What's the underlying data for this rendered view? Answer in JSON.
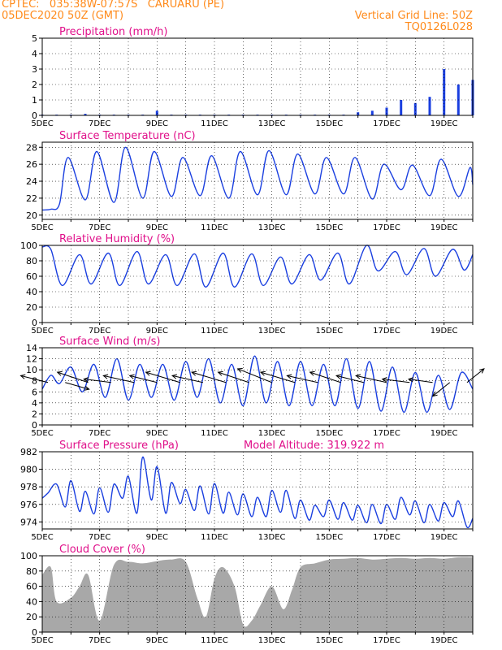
{
  "header": {
    "left_line1": "CPTEC:   035:38W-07:57S   CARUARU (PE)",
    "left_line2": "05DEC2020 50Z (GMT)",
    "right_line1": "Vertical Grid Line: 50Z",
    "right_line2": "TQ0126L028"
  },
  "colors": {
    "header": "#ff8a1a",
    "title": "#e0108a",
    "series": "#1a3fe0",
    "cloud": "#a8a8a8",
    "grid": "#000000"
  },
  "x_tick_labels": [
    "5DEC",
    "7DEC",
    "9DEC",
    "11DEC",
    "13DEC",
    "15DEC",
    "17DEC",
    "19DEC"
  ],
  "extra_label": "Model Altitude: 319.922 m",
  "chart_data": [
    {
      "id": "precip",
      "type": "bar",
      "title": "Precipitation (mm/h)",
      "ylim": [
        0,
        5
      ],
      "yticks": [
        0,
        1,
        2,
        3,
        4,
        5
      ],
      "x_days": [
        0,
        0.5,
        1,
        1.5,
        2,
        2.5,
        3,
        3.5,
        4,
        4.5,
        5,
        5.5,
        6,
        6.5,
        7,
        7.5,
        8,
        8.5,
        9,
        9.5,
        10,
        10.5,
        11,
        11.5,
        12,
        12.5,
        13,
        13.5,
        14,
        14.5,
        15
      ],
      "values": [
        0.05,
        0.05,
        0.05,
        0.1,
        0.05,
        0.05,
        0.05,
        0.05,
        0.3,
        0.05,
        0.05,
        0.05,
        0.05,
        0.05,
        0.05,
        0.05,
        0.05,
        0.05,
        0.05,
        0.05,
        0.05,
        0.05,
        0.2,
        0.3,
        0.5,
        1.0,
        0.8,
        1.2,
        3.0,
        2.0,
        2.3
      ]
    },
    {
      "id": "temp",
      "type": "line",
      "title": "Surface Temperature (nC)",
      "ylim": [
        19.5,
        28.6
      ],
      "yticks": [
        20,
        22,
        24,
        26,
        28
      ],
      "x_days": [
        0,
        0.3,
        0.6,
        0.9,
        1.5,
        1.9,
        2.5,
        2.9,
        3.5,
        3.9,
        4.5,
        4.9,
        5.5,
        5.9,
        6.5,
        6.9,
        7.5,
        7.9,
        8.5,
        8.9,
        9.5,
        9.9,
        10.5,
        10.9,
        11.5,
        11.9,
        12.5,
        12.9,
        13.5,
        13.9,
        14.5,
        14.9,
        15
      ],
      "values": [
        20.6,
        20.7,
        21.3,
        26.8,
        21.8,
        27.5,
        21.5,
        28.0,
        22.0,
        27.5,
        22.2,
        26.8,
        22.3,
        27.0,
        22.0,
        27.5,
        22.4,
        27.6,
        22.4,
        27.2,
        22.5,
        26.8,
        22.5,
        26.8,
        21.9,
        26.0,
        23.0,
        25.9,
        22.3,
        26.6,
        22.2,
        25.6,
        23.6
      ]
    },
    {
      "id": "rh",
      "type": "line",
      "title": "Relative Humidity (%)",
      "ylim": [
        0,
        100
      ],
      "yticks": [
        0,
        20,
        40,
        60,
        80,
        100
      ],
      "x_days": [
        0,
        0.3,
        0.7,
        1.3,
        1.7,
        2.3,
        2.7,
        3.3,
        3.7,
        4.3,
        4.7,
        5.3,
        5.7,
        6.3,
        6.7,
        7.3,
        7.7,
        8.3,
        8.7,
        9.3,
        9.7,
        10.3,
        10.7,
        11.3,
        11.7,
        12.3,
        12.7,
        13.3,
        13.7,
        14.3,
        14.7,
        15
      ],
      "values": [
        98,
        95,
        48,
        88,
        50,
        90,
        48,
        92,
        50,
        88,
        48,
        89,
        46,
        90,
        46,
        89,
        48,
        85,
        50,
        88,
        55,
        90,
        50,
        100,
        67,
        92,
        62,
        96,
        60,
        95,
        68,
        88
      ]
    },
    {
      "id": "wind",
      "type": "line",
      "title": "Surface Wind (m/s)",
      "ylim": [
        0,
        14
      ],
      "yticks": [
        0,
        2,
        4,
        6,
        8,
        10,
        12,
        14
      ],
      "x_days": [
        0,
        0.3,
        0.6,
        1.0,
        1.4,
        1.8,
        2.2,
        2.6,
        3.0,
        3.4,
        3.8,
        4.2,
        4.6,
        5.0,
        5.4,
        5.8,
        6.2,
        6.6,
        7.0,
        7.4,
        7.8,
        8.2,
        8.6,
        9.0,
        9.4,
        9.8,
        10.2,
        10.6,
        11.0,
        11.4,
        11.8,
        12.2,
        12.6,
        13.0,
        13.4,
        13.8,
        14.2,
        14.6,
        15
      ],
      "values": [
        6.5,
        9,
        7.5,
        10.5,
        6,
        11,
        5,
        12,
        4.5,
        11,
        5,
        11,
        4.5,
        11.5,
        5,
        12,
        4,
        11,
        3.5,
        12.5,
        4,
        11.5,
        3.5,
        11.5,
        3.5,
        11,
        3.5,
        12,
        3,
        11.5,
        2.5,
        10.5,
        2.3,
        9.5,
        2.3,
        9,
        2.8,
        9.5,
        6.5
      ],
      "barbs": [
        {
          "d": 0.2,
          "u": -8,
          "v": 2
        },
        {
          "d": 0.8,
          "u": 7,
          "v": -2
        },
        {
          "d": 1.6,
          "u": -9,
          "v": 3
        },
        {
          "d": 2.4,
          "u": -8,
          "v": 1
        },
        {
          "d": 3.2,
          "u": -9,
          "v": 2
        },
        {
          "d": 4.0,
          "u": -8,
          "v": 2
        },
        {
          "d": 4.8,
          "u": -10,
          "v": 3
        },
        {
          "d": 5.6,
          "u": -9,
          "v": 2
        },
        {
          "d": 6.4,
          "u": -10,
          "v": 3
        },
        {
          "d": 7.2,
          "u": -9,
          "v": 3
        },
        {
          "d": 8.0,
          "u": -10,
          "v": 4
        },
        {
          "d": 8.8,
          "u": -10,
          "v": 3
        },
        {
          "d": 9.6,
          "u": -9,
          "v": 2
        },
        {
          "d": 10.4,
          "u": -9,
          "v": 3
        },
        {
          "d": 11.2,
          "u": -8,
          "v": 2
        },
        {
          "d": 12.0,
          "u": -9,
          "v": 2
        },
        {
          "d": 12.8,
          "u": -8,
          "v": 1
        },
        {
          "d": 13.6,
          "u": -7,
          "v": 1
        },
        {
          "d": 14.2,
          "u": -5,
          "v": -4
        },
        {
          "d": 14.8,
          "u": 5,
          "v": 4
        }
      ]
    },
    {
      "id": "pres",
      "type": "line",
      "title": "Surface Pressure (hPa)",
      "ylim": [
        973.2,
        982
      ],
      "yticks": [
        974,
        976,
        978,
        980,
        982
      ],
      "x_days": [
        0,
        0.2,
        0.5,
        0.8,
        1.0,
        1.3,
        1.5,
        1.8,
        2.0,
        2.3,
        2.5,
        2.8,
        3.0,
        3.3,
        3.5,
        3.8,
        4.0,
        4.3,
        4.5,
        4.8,
        5.0,
        5.3,
        5.5,
        5.8,
        6.0,
        6.3,
        6.5,
        6.8,
        7.0,
        7.3,
        7.5,
        7.8,
        8.0,
        8.3,
        8.5,
        8.8,
        9.0,
        9.3,
        9.5,
        9.8,
        10.0,
        10.3,
        10.5,
        10.8,
        11.0,
        11.3,
        11.5,
        11.8,
        12.0,
        12.3,
        12.5,
        12.8,
        13.0,
        13.3,
        13.5,
        13.8,
        14.0,
        14.3,
        14.5,
        14.8,
        15
      ],
      "values": [
        976.7,
        977.3,
        978.3,
        975.7,
        978.7,
        975.2,
        977.5,
        974.9,
        977.9,
        975.1,
        978.3,
        976.7,
        979.2,
        975.0,
        981.4,
        976.5,
        980.3,
        975.0,
        978.5,
        976.1,
        977.7,
        975.3,
        978.1,
        974.9,
        978.4,
        975.0,
        977.4,
        974.8,
        977.2,
        974.6,
        976.8,
        974.6,
        977.6,
        975.1,
        977.6,
        974.4,
        976.5,
        974.2,
        975.9,
        974.6,
        976.5,
        974.3,
        976.2,
        974.2,
        975.9,
        973.9,
        976.0,
        973.8,
        976.0,
        974.3,
        976.8,
        974.8,
        976.4,
        973.9,
        976.0,
        974.1,
        976.2,
        974.6,
        976.4,
        973.4,
        974.4
      ]
    },
    {
      "id": "cloud",
      "type": "area",
      "title": "Cloud Cover (%)",
      "ylim": [
        0,
        100
      ],
      "yticks": [
        0,
        20,
        40,
        60,
        80,
        100
      ],
      "x_days": [
        0,
        0.3,
        0.5,
        1.0,
        1.3,
        1.6,
        2.0,
        2.5,
        3.0,
        3.5,
        4.0,
        4.5,
        5.0,
        5.4,
        5.7,
        6.0,
        6.3,
        6.7,
        7.0,
        7.3,
        7.6,
        8.0,
        8.4,
        8.7,
        9.0,
        9.5,
        10.0,
        10.5,
        11.0,
        11.5,
        12.0,
        12.5,
        13.0,
        13.5,
        14.0,
        14.5,
        15
      ],
      "values": [
        75,
        85,
        40,
        45,
        60,
        75,
        15,
        88,
        92,
        90,
        93,
        95,
        92,
        45,
        20,
        70,
        85,
        60,
        10,
        15,
        35,
        60,
        30,
        55,
        85,
        90,
        95,
        96,
        97,
        95,
        96,
        97,
        96,
        97,
        96,
        98,
        98
      ]
    }
  ]
}
